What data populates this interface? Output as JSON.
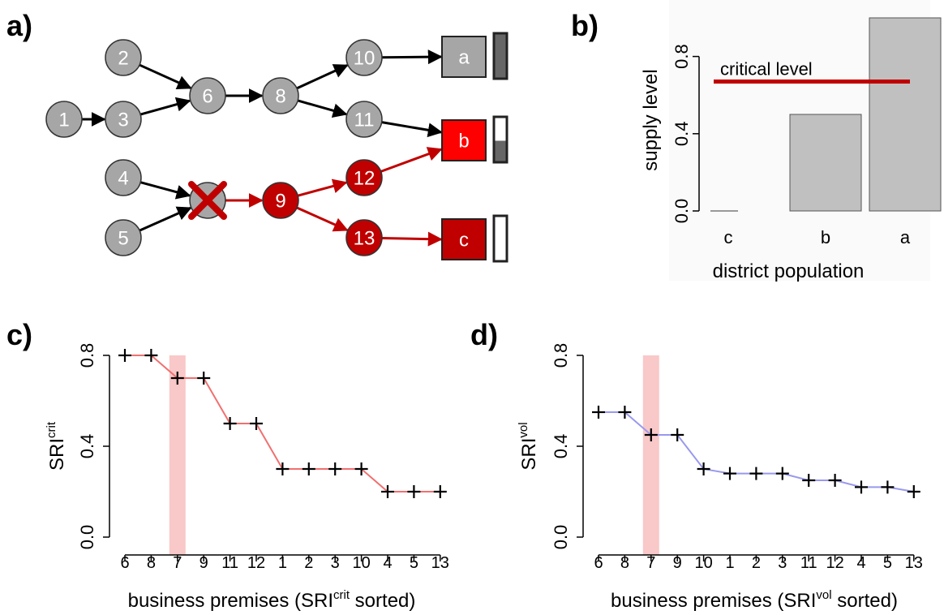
{
  "panels": {
    "a": "a)",
    "b": "b)",
    "c": "c)",
    "d": "d)"
  },
  "colors": {
    "node_gray": "#a6a6a6",
    "node_red": "#c00000",
    "district_a": "#a6a6a6",
    "district_b": "#ff0000",
    "district_c": "#c00000",
    "edge_black": "#000000",
    "edge_red": "#c00000",
    "bar_gray": "#c0c0c0",
    "critical_line": "#c00000",
    "series_crit": "#f07070",
    "series_vol": "#9999ee",
    "highlight": "#f9c8c8"
  },
  "network": {
    "nodes": [
      {
        "id": "1",
        "label": "1",
        "state": "normal"
      },
      {
        "id": "2",
        "label": "2",
        "state": "normal"
      },
      {
        "id": "3",
        "label": "3",
        "state": "normal"
      },
      {
        "id": "4",
        "label": "4",
        "state": "normal"
      },
      {
        "id": "5",
        "label": "5",
        "state": "normal"
      },
      {
        "id": "6",
        "label": "6",
        "state": "normal"
      },
      {
        "id": "7",
        "label": "",
        "state": "failed"
      },
      {
        "id": "8",
        "label": "8",
        "state": "normal"
      },
      {
        "id": "9",
        "label": "9",
        "state": "affected"
      },
      {
        "id": "10",
        "label": "10",
        "state": "normal"
      },
      {
        "id": "11",
        "label": "11",
        "state": "normal"
      },
      {
        "id": "12",
        "label": "12",
        "state": "affected"
      },
      {
        "id": "13",
        "label": "13",
        "state": "affected"
      }
    ],
    "districts": [
      {
        "id": "a",
        "label": "a",
        "state": "normal",
        "supply": 1.0
      },
      {
        "id": "b",
        "label": "b",
        "state": "partial",
        "supply": 0.5
      },
      {
        "id": "c",
        "label": "c",
        "state": "cut",
        "supply": 0.0
      }
    ],
    "edges": [
      {
        "from": "1",
        "to": "3",
        "state": "normal"
      },
      {
        "from": "2",
        "to": "6",
        "state": "normal"
      },
      {
        "from": "3",
        "to": "6",
        "state": "normal"
      },
      {
        "from": "6",
        "to": "8",
        "state": "normal"
      },
      {
        "from": "8",
        "to": "10",
        "state": "normal"
      },
      {
        "from": "8",
        "to": "11",
        "state": "normal"
      },
      {
        "from": "10",
        "to": "a",
        "state": "normal"
      },
      {
        "from": "11",
        "to": "b",
        "state": "normal"
      },
      {
        "from": "4",
        "to": "7",
        "state": "normal"
      },
      {
        "from": "5",
        "to": "7",
        "state": "normal"
      },
      {
        "from": "7",
        "to": "9",
        "state": "affected"
      },
      {
        "from": "9",
        "to": "12",
        "state": "affected"
      },
      {
        "from": "9",
        "to": "13",
        "state": "affected"
      },
      {
        "from": "12",
        "to": "b",
        "state": "affected"
      },
      {
        "from": "13",
        "to": "c",
        "state": "affected"
      }
    ]
  },
  "chart_data": [
    {
      "panel": "b",
      "type": "bar",
      "categories": [
        "c",
        "b",
        "a"
      ],
      "values": [
        0.0,
        0.5,
        1.0
      ],
      "ylabel": "supply level",
      "xlabel": "district population",
      "ylim": [
        0,
        1.0
      ],
      "yticks": [
        "0.0",
        "0.4",
        "0.8"
      ],
      "ytick_values": [
        0.0,
        0.4,
        0.8
      ],
      "reference_line": {
        "label": "critical level",
        "value": 0.67
      }
    },
    {
      "panel": "c",
      "type": "line",
      "ylabel_main": "SRI",
      "ylabel_sup": "crit",
      "xlabel_pre": "business premises (SRI",
      "xlabel_sup": "crit",
      "xlabel_post": " sorted)",
      "categories": [
        "6",
        "8",
        "7",
        "9",
        "11",
        "12",
        "1",
        "2",
        "3",
        "10",
        "4",
        "5",
        "13"
      ],
      "values": [
        0.8,
        0.8,
        0.7,
        0.7,
        0.5,
        0.5,
        0.3,
        0.3,
        0.3,
        0.3,
        0.2,
        0.2,
        0.2
      ],
      "highlight_category": "7",
      "ylim": [
        0,
        0.8
      ],
      "yticks": [
        "0.0",
        "0.4",
        "0.8"
      ],
      "ytick_values": [
        0.0,
        0.4,
        0.8
      ]
    },
    {
      "panel": "d",
      "type": "line",
      "ylabel_main": "SRI",
      "ylabel_sup": "vol",
      "xlabel_pre": "business premises (SRI",
      "xlabel_sup": "vol",
      "xlabel_post": " sorted)",
      "categories": [
        "6",
        "8",
        "7",
        "9",
        "10",
        "1",
        "2",
        "3",
        "11",
        "12",
        "4",
        "5",
        "13"
      ],
      "values": [
        0.55,
        0.55,
        0.45,
        0.45,
        0.3,
        0.28,
        0.28,
        0.28,
        0.25,
        0.25,
        0.22,
        0.22,
        0.2
      ],
      "highlight_category": "7",
      "ylim": [
        0,
        0.8
      ],
      "yticks": [
        "0.0",
        "0.4",
        "0.8"
      ],
      "ytick_values": [
        0.0,
        0.4,
        0.8
      ]
    }
  ]
}
